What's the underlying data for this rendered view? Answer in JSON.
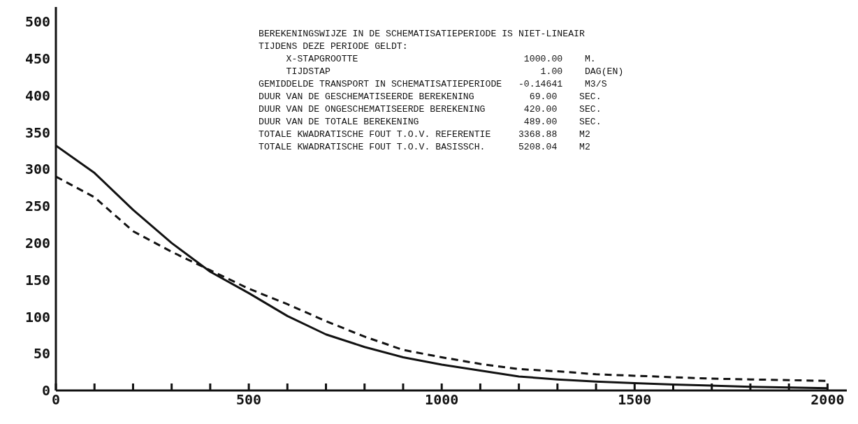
{
  "chart_data": {
    "type": "line",
    "xlim": [
      0,
      2050
    ],
    "ylim": [
      0,
      520
    ],
    "xticks": [
      0,
      {
        "value": 100,
        "label": null
      },
      {
        "value": 200,
        "label": null
      },
      {
        "value": 300,
        "label": null
      },
      {
        "value": 400,
        "label": null
      },
      500,
      {
        "value": 600,
        "label": null
      },
      {
        "value": 700,
        "label": null
      },
      {
        "value": 800,
        "label": null
      },
      {
        "value": 900,
        "label": null
      },
      1000,
      {
        "value": 1100,
        "label": null
      },
      {
        "value": 1200,
        "label": null
      },
      {
        "value": 1300,
        "label": null
      },
      {
        "value": 1400,
        "label": null
      },
      1500,
      {
        "value": 1600,
        "label": null
      },
      {
        "value": 1700,
        "label": null
      },
      {
        "value": 1800,
        "label": null
      },
      {
        "value": 1900,
        "label": null
      },
      2000
    ],
    "yticks": [
      0,
      50,
      100,
      150,
      200,
      250,
      300,
      350,
      400,
      450,
      500
    ],
    "grid": false,
    "marker": "none",
    "series": [
      {
        "color": "#111111",
        "line_style": "solid",
        "x": [
          0,
          100,
          200,
          300,
          400,
          500,
          600,
          700,
          800,
          900,
          1000,
          1100,
          1200,
          1300,
          1400,
          1500,
          1600,
          1800,
          2000
        ],
        "values": [
          332,
          295,
          245,
          200,
          161,
          132,
          101,
          76,
          59,
          45,
          35,
          27,
          19,
          15,
          12,
          10,
          8,
          5,
          3
        ]
      },
      {
        "color": "#111111",
        "line_style": "dashed",
        "x": [
          0,
          100,
          200,
          300,
          400,
          500,
          600,
          700,
          800,
          900,
          1000,
          1100,
          1200,
          1300,
          1400,
          1500,
          1600,
          1700,
          1800,
          1900,
          2000
        ],
        "values": [
          290,
          262,
          216,
          188,
          163,
          138,
          117,
          94,
          73,
          55,
          45,
          36,
          29,
          26,
          22,
          20,
          18,
          16,
          15,
          14,
          13
        ]
      }
    ],
    "annotations": [
      "BEREKENINGSWIJZE IN DE SCHEMATISATIEPERIODE IS NIET-LINEAIR",
      "TIJDENS DEZE PERIODE GELDT:",
      "     X-STAPGROOTTE                              1000.00    M.",
      "     TIJDSTAP                                      1.00    DAG(EN)",
      "GEMIDDELDE TRANSPORT IN SCHEMATISATIEPERIODE   -0.14641    M3/S",
      "DUUR VAN DE GESCHEMATISEERDE BEREKENING          69.00    SEC.",
      "DUUR VAN DE ONGESCHEMATISEERDE BEREKENING       420.00    SEC.",
      "DUUR VAN DE TOTALE BEREKENING                   489.00    SEC.",
      "TOTALE KWADRATISCHE FOUT T.O.V. REFERENTIE     3368.88    M2",
      "TOTALE KWADRATISCHE FOUT T.O.V. BASISSCH.      5208.04    M2"
    ]
  }
}
